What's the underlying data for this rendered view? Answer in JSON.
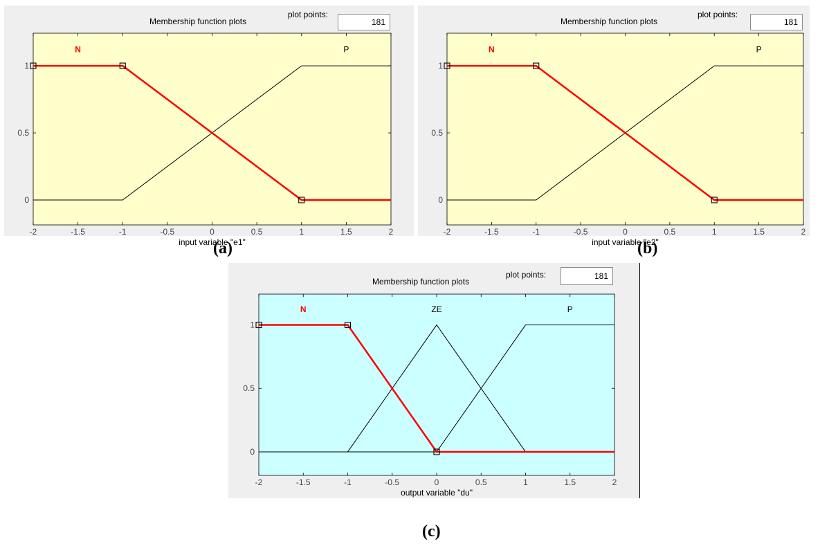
{
  "header": {
    "title": "Membership function plots",
    "plot_points_label": "plot points:",
    "plot_points_value": "181"
  },
  "captions": [
    "(a)",
    "(b)",
    "(c)"
  ],
  "colors": {
    "panel": "#efefef",
    "input_plot_bg": "#ffffcc",
    "output_plot_bg": "#ccffff",
    "selected_mf": "#ff0000",
    "mf": "#000000"
  },
  "chart_data": [
    {
      "type": "line",
      "xlabel": "input variable \"e1\"",
      "xlim": [
        -2,
        2
      ],
      "ylim": [
        0,
        1
      ],
      "x_ticks": [
        "-2",
        "-1.5",
        "-1",
        "-0.5",
        "0",
        "0.5",
        "1",
        "1.5",
        "2"
      ],
      "y_ticks": [
        "0",
        "0.5",
        "1"
      ],
      "series": [
        {
          "name": "N",
          "selected": true,
          "points": [
            [
              -2,
              1
            ],
            [
              -1,
              1
            ],
            [
              1,
              0
            ],
            [
              2,
              0
            ]
          ]
        },
        {
          "name": "P",
          "selected": false,
          "points": [
            [
              -2,
              0
            ],
            [
              -1,
              0
            ],
            [
              1,
              1
            ],
            [
              2,
              1
            ]
          ]
        }
      ]
    },
    {
      "type": "line",
      "xlabel": "input variable \"e2\"",
      "xlim": [
        -2,
        2
      ],
      "ylim": [
        0,
        1
      ],
      "x_ticks": [
        "-2",
        "-1.5",
        "-1",
        "-0.5",
        "0",
        "0.5",
        "1",
        "1.5",
        "2"
      ],
      "y_ticks": [
        "0",
        "0.5",
        "1"
      ],
      "series": [
        {
          "name": "N",
          "selected": true,
          "points": [
            [
              -2,
              1
            ],
            [
              -1,
              1
            ],
            [
              1,
              0
            ],
            [
              2,
              0
            ]
          ]
        },
        {
          "name": "P",
          "selected": false,
          "points": [
            [
              -2,
              0
            ],
            [
              -1,
              0
            ],
            [
              1,
              1
            ],
            [
              2,
              1
            ]
          ]
        }
      ]
    },
    {
      "type": "line",
      "xlabel": "output variable \"du\"",
      "xlim": [
        -2,
        2
      ],
      "ylim": [
        0,
        1
      ],
      "x_ticks": [
        "-2",
        "-1.5",
        "-1",
        "-0.5",
        "0",
        "0.5",
        "1",
        "1.5",
        "2"
      ],
      "y_ticks": [
        "0",
        "0.5",
        "1"
      ],
      "series": [
        {
          "name": "N",
          "selected": true,
          "points": [
            [
              -2,
              1
            ],
            [
              -1,
              1
            ],
            [
              0,
              0
            ],
            [
              2,
              0
            ]
          ]
        },
        {
          "name": "ZE",
          "selected": false,
          "points": [
            [
              -2,
              0
            ],
            [
              -1,
              0
            ],
            [
              0,
              1
            ],
            [
              1,
              0
            ],
            [
              2,
              0
            ]
          ]
        },
        {
          "name": "P",
          "selected": false,
          "points": [
            [
              -2,
              0
            ],
            [
              0,
              0
            ],
            [
              1,
              1
            ],
            [
              2,
              1
            ]
          ]
        }
      ]
    }
  ]
}
